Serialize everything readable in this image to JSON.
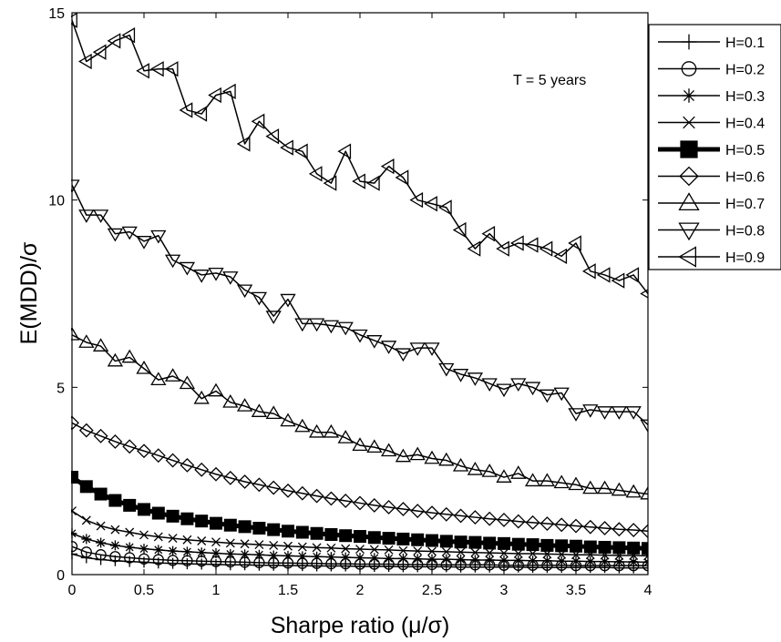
{
  "chart_data": {
    "type": "line",
    "title": "",
    "xlabel": "Sharpe ratio (μ/σ)",
    "ylabel": "E(MDD)/σ",
    "xlim": [
      0,
      4
    ],
    "ylim": [
      0,
      15
    ],
    "xticks": [
      "0",
      "0.5",
      "1",
      "1.5",
      "2",
      "2.5",
      "3",
      "3.5",
      "4"
    ],
    "yticks": [
      "0",
      "5",
      "10",
      "15"
    ],
    "grid": false,
    "legend_position": "outside-top-right",
    "annotation": "T = 5 years",
    "x": [
      0,
      0.1,
      0.2,
      0.3,
      0.4,
      0.5,
      0.6,
      0.7,
      0.8,
      0.9,
      1,
      1.1,
      1.2,
      1.3,
      1.4,
      1.5,
      1.6,
      1.7,
      1.8,
      1.9,
      2,
      2.1,
      2.2,
      2.3,
      2.4,
      2.5,
      2.6,
      2.7,
      2.8,
      2.9,
      3,
      3.1,
      3.2,
      3.3,
      3.4,
      3.5,
      3.6,
      3.7,
      3.8,
      3.9,
      4
    ],
    "series": [
      {
        "name": "H=0.1",
        "marker": "plus",
        "line_width": 1.5,
        "values": [
          0.55,
          0.45,
          0.4,
          0.37,
          0.35,
          0.33,
          0.31,
          0.3,
          0.29,
          0.28,
          0.27,
          0.26,
          0.26,
          0.25,
          0.25,
          0.24,
          0.24,
          0.23,
          0.23,
          0.23,
          0.22,
          0.22,
          0.22,
          0.21,
          0.21,
          0.21,
          0.21,
          0.2,
          0.2,
          0.2,
          0.2,
          0.2,
          0.19,
          0.19,
          0.19,
          0.19,
          0.19,
          0.19,
          0.18,
          0.18,
          0.18
        ]
      },
      {
        "name": "H=0.2",
        "marker": "circle",
        "line_width": 1.5,
        "values": [
          0.75,
          0.6,
          0.53,
          0.48,
          0.45,
          0.42,
          0.4,
          0.38,
          0.37,
          0.36,
          0.35,
          0.34,
          0.33,
          0.32,
          0.31,
          0.31,
          0.3,
          0.3,
          0.29,
          0.29,
          0.28,
          0.28,
          0.28,
          0.27,
          0.27,
          0.27,
          0.26,
          0.26,
          0.26,
          0.26,
          0.25,
          0.25,
          0.25,
          0.25,
          0.25,
          0.24,
          0.24,
          0.24,
          0.24,
          0.24,
          0.24
        ]
      },
      {
        "name": "H=0.3",
        "marker": "asterisk",
        "line_width": 1.5,
        "values": [
          1.1,
          0.95,
          0.85,
          0.78,
          0.73,
          0.69,
          0.66,
          0.63,
          0.61,
          0.59,
          0.57,
          0.55,
          0.54,
          0.53,
          0.51,
          0.5,
          0.49,
          0.48,
          0.47,
          0.46,
          0.45,
          0.44,
          0.43,
          0.43,
          0.42,
          0.41,
          0.41,
          0.4,
          0.39,
          0.39,
          0.38,
          0.38,
          0.37,
          0.37,
          0.36,
          0.36,
          0.35,
          0.35,
          0.34,
          0.34,
          0.33
        ]
      },
      {
        "name": "H=0.4",
        "marker": "cross",
        "line_width": 1.5,
        "values": [
          1.7,
          1.45,
          1.3,
          1.2,
          1.13,
          1.06,
          1.01,
          0.97,
          0.93,
          0.9,
          0.87,
          0.84,
          0.82,
          0.8,
          0.78,
          0.76,
          0.74,
          0.72,
          0.71,
          0.69,
          0.68,
          0.67,
          0.66,
          0.64,
          0.63,
          0.62,
          0.61,
          0.6,
          0.59,
          0.58,
          0.57,
          0.56,
          0.56,
          0.55,
          0.54,
          0.53,
          0.53,
          0.52,
          0.51,
          0.51,
          0.5
        ]
      },
      {
        "name": "H=0.5",
        "marker": "square-filled",
        "line_width": 5,
        "values": [
          2.6,
          2.35,
          2.15,
          1.98,
          1.85,
          1.74,
          1.64,
          1.56,
          1.49,
          1.43,
          1.37,
          1.32,
          1.28,
          1.24,
          1.2,
          1.16,
          1.13,
          1.1,
          1.07,
          1.04,
          1.02,
          0.99,
          0.97,
          0.95,
          0.93,
          0.91,
          0.89,
          0.87,
          0.86,
          0.84,
          0.83,
          0.81,
          0.8,
          0.78,
          0.77,
          0.76,
          0.74,
          0.73,
          0.72,
          0.71,
          0.7
        ]
      },
      {
        "name": "H=0.6",
        "marker": "diamond",
        "line_width": 1.5,
        "values": [
          4.05,
          3.85,
          3.7,
          3.55,
          3.42,
          3.3,
          3.18,
          3.05,
          2.92,
          2.8,
          2.68,
          2.58,
          2.48,
          2.4,
          2.32,
          2.24,
          2.17,
          2.1,
          2.03,
          1.97,
          1.91,
          1.85,
          1.8,
          1.75,
          1.7,
          1.65,
          1.61,
          1.57,
          1.53,
          1.49,
          1.46,
          1.42,
          1.39,
          1.36,
          1.33,
          1.3,
          1.27,
          1.24,
          1.21,
          1.19,
          1.16
        ]
      },
      {
        "name": "H=0.7",
        "marker": "triangle-up",
        "line_width": 1.5,
        "values": [
          6.4,
          6.2,
          6.1,
          5.7,
          5.8,
          5.5,
          5.2,
          5.3,
          5.1,
          4.7,
          4.9,
          4.6,
          4.5,
          4.35,
          4.3,
          4.1,
          3.95,
          3.8,
          3.8,
          3.65,
          3.45,
          3.4,
          3.3,
          3.15,
          3.2,
          3.1,
          3.05,
          2.9,
          2.8,
          2.75,
          2.6,
          2.7,
          2.5,
          2.5,
          2.45,
          2.4,
          2.3,
          2.3,
          2.25,
          2.2,
          2.15
        ]
      },
      {
        "name": "H=0.8",
        "marker": "triangle-down",
        "line_width": 1.5,
        "values": [
          10.4,
          9.6,
          9.6,
          9.1,
          9.15,
          8.9,
          9.05,
          8.4,
          8.2,
          8.0,
          8.05,
          7.95,
          7.6,
          7.4,
          6.9,
          7.35,
          6.7,
          6.7,
          6.65,
          6.6,
          6.4,
          6.25,
          6.1,
          5.9,
          6.05,
          6.05,
          5.5,
          5.35,
          5.25,
          5.1,
          4.95,
          5.1,
          5.0,
          4.8,
          4.85,
          4.3,
          4.4,
          4.35,
          4.35,
          4.35,
          4.0
        ]
      },
      {
        "name": "H=0.9",
        "marker": "triangle-left",
        "line_width": 1.5,
        "values": [
          14.8,
          13.7,
          13.95,
          14.25,
          14.4,
          13.45,
          13.5,
          13.5,
          12.4,
          12.3,
          12.8,
          12.9,
          11.5,
          12.1,
          11.7,
          11.4,
          11.3,
          10.7,
          10.45,
          11.3,
          10.5,
          10.45,
          10.9,
          10.6,
          10.0,
          9.9,
          9.8,
          9.2,
          8.7,
          9.1,
          8.7,
          8.85,
          8.8,
          8.7,
          8.5,
          8.85,
          8.1,
          8.0,
          7.85,
          8.0,
          7.5
        ]
      }
    ]
  }
}
